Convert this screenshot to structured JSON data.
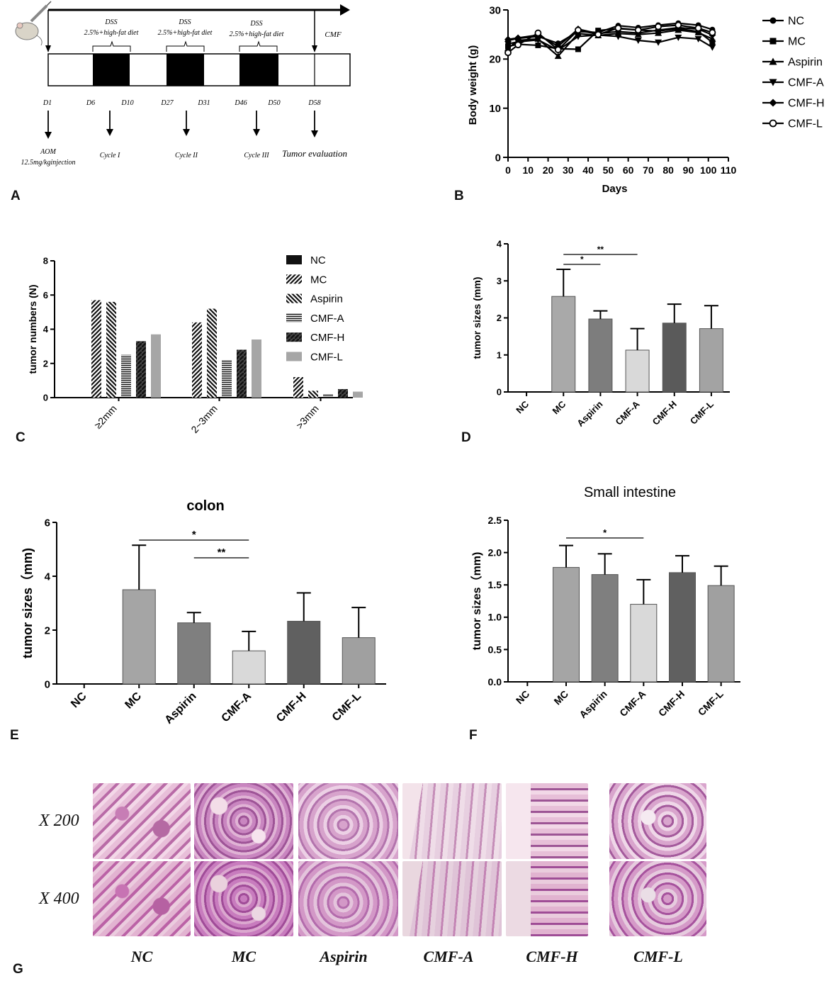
{
  "panel_labels": [
    "A",
    "B",
    "C",
    "D",
    "E",
    "F",
    "G"
  ],
  "timeline": {
    "arrow_end_label": "CMF",
    "phases": [
      {
        "title": "DSS",
        "subtitle": "2.5%+high-fat diet"
      },
      {
        "title": "DSS",
        "subtitle": "2.5%+high-fat diet"
      },
      {
        "title": "DSS",
        "subtitle": "2.5%+high-fat diet"
      }
    ],
    "days": [
      "D1",
      "D6",
      "D10",
      "D27",
      "D31",
      "D46",
      "D50",
      "D58"
    ],
    "events": [
      {
        "label": "AOM",
        "sub": "12.5mg/kginjection"
      },
      {
        "label": "Cycle I",
        "sub": ""
      },
      {
        "label": "Cycle II",
        "sub": ""
      },
      {
        "label": "Cycle III",
        "sub": ""
      },
      {
        "label": "Tumor evaluation",
        "sub": ""
      }
    ]
  },
  "chart_data": [
    {
      "id": "B",
      "type": "line",
      "title": "",
      "xlabel": "Days",
      "ylabel": "Body weight (g)",
      "xlim": [
        0,
        110
      ],
      "ylim": [
        0,
        30
      ],
      "xticks": [
        "0",
        "10",
        "20",
        "30",
        "40",
        "50",
        "60",
        "70",
        "80",
        "90",
        "100",
        "110"
      ],
      "yticks": [
        "0",
        "10",
        "20",
        "30"
      ],
      "legend_position": "right",
      "x": [
        0,
        5,
        15,
        25,
        35,
        45,
        55,
        65,
        75,
        85,
        95,
        102
      ],
      "series": [
        {
          "name": "NC",
          "marker": "circle",
          "values": [
            23.8,
            24.2,
            24.6,
            23.2,
            25.6,
            25.4,
            26.8,
            26.4,
            26.9,
            27.3,
            26.9,
            26.0
          ]
        },
        {
          "name": "MC",
          "marker": "square",
          "values": [
            22.6,
            23.0,
            22.8,
            22.1,
            22.0,
            25.8,
            26.2,
            25.9,
            25.7,
            26.2,
            25.6,
            23.4
          ]
        },
        {
          "name": "Aspirin",
          "marker": "triangle-up",
          "values": [
            22.2,
            23.8,
            24.1,
            20.6,
            25.2,
            24.8,
            25.2,
            25.0,
            25.3,
            25.9,
            25.4,
            24.1
          ]
        },
        {
          "name": "CMF-A",
          "marker": "triangle-down",
          "values": [
            23.1,
            23.5,
            23.9,
            21.8,
            24.6,
            24.9,
            24.6,
            23.8,
            23.4,
            24.4,
            24.1,
            22.4
          ]
        },
        {
          "name": "CMF-H",
          "marker": "diamond",
          "values": [
            24.0,
            24.3,
            24.9,
            22.6,
            26.1,
            25.2,
            25.6,
            25.3,
            25.9,
            26.4,
            26.1,
            24.9
          ]
        },
        {
          "name": "CMF-L",
          "marker": "circle-open",
          "values": [
            21.3,
            22.9,
            25.3,
            21.9,
            25.9,
            25.0,
            26.3,
            25.9,
            26.6,
            26.9,
            26.3,
            25.4
          ]
        }
      ]
    },
    {
      "id": "C",
      "type": "bar",
      "title": "",
      "xlabel": "",
      "ylabel": "tumor numbers (N)",
      "ylim": [
        0,
        8
      ],
      "yticks": [
        "0",
        "2",
        "4",
        "6",
        "8"
      ],
      "categories": [
        "≥2mm",
        "2~3mm",
        ">3mm"
      ],
      "legend_position": "right",
      "series": [
        {
          "name": "NC",
          "values": [
            0,
            0,
            0
          ],
          "color": "#111111",
          "pattern": "solid"
        },
        {
          "name": "MC",
          "values": [
            5.7,
            4.4,
            1.2
          ],
          "color": "#222222",
          "pattern": "diag-up"
        },
        {
          "name": "Aspirin",
          "values": [
            5.6,
            5.2,
            0.4
          ],
          "color": "#222222",
          "pattern": "diag-down"
        },
        {
          "name": "CMF-A",
          "values": [
            2.5,
            2.2,
            0.2
          ],
          "color": "#222222",
          "pattern": "horizontal"
        },
        {
          "name": "CMF-H",
          "values": [
            3.3,
            2.8,
            0.5
          ],
          "color": "#333333",
          "pattern": "dense-diag"
        },
        {
          "name": "CMF-L",
          "values": [
            3.7,
            3.4,
            0.35
          ],
          "color": "#a6a6a6",
          "pattern": "solid"
        }
      ]
    },
    {
      "id": "D",
      "type": "bar",
      "title": "",
      "xlabel": "",
      "ylabel": "tumor sizes (mm)",
      "ylim": [
        0,
        4
      ],
      "yticks": [
        "0",
        "1",
        "2",
        "3",
        "4"
      ],
      "categories": [
        "NC",
        "MC",
        "Aspirin",
        "CMF-A",
        "CMF-H",
        "CMF-L"
      ],
      "values": [
        0,
        2.58,
        1.97,
        1.13,
        1.86,
        1.71
      ],
      "errors": [
        0,
        0.73,
        0.22,
        0.58,
        0.51,
        0.62
      ],
      "colors": [
        "#888888",
        "#a9a9a9",
        "#7d7d7d",
        "#d9d9d9",
        "#5a5a5a",
        "#a3a3a3"
      ],
      "significance": [
        {
          "from": 1,
          "to": 2,
          "label": "*"
        },
        {
          "from": 1,
          "to": 3,
          "label": "**"
        }
      ]
    },
    {
      "id": "E",
      "type": "bar",
      "title": "colon",
      "xlabel": "",
      "ylabel": "tumor sizes（mm)",
      "ylim": [
        0,
        6
      ],
      "yticks": [
        "0",
        "2",
        "4",
        "6"
      ],
      "categories": [
        "NC",
        "MC",
        "Aspirin",
        "CMF-A",
        "CMF-H",
        "CMF-L"
      ],
      "values": [
        0,
        3.5,
        2.27,
        1.23,
        2.33,
        1.72
      ],
      "errors": [
        0,
        1.65,
        0.38,
        0.72,
        1.05,
        1.12
      ],
      "colors": [
        "#888888",
        "#a5a5a5",
        "#7f7f7f",
        "#d9d9d9",
        "#606060",
        "#a0a0a0"
      ],
      "significance": [
        {
          "from": 1,
          "to": 3,
          "label": "*"
        },
        {
          "from": 2,
          "to": 3,
          "label": "**"
        }
      ]
    },
    {
      "id": "F",
      "type": "bar",
      "title": "Small intestine",
      "xlabel": "",
      "ylabel": "tumor sizes（mm)",
      "ylim": [
        0,
        2.5
      ],
      "yticks": [
        "0.0",
        "0.5",
        "1.0",
        "1.5",
        "2.0",
        "2.5"
      ],
      "categories": [
        "NC",
        "MC",
        "Aspirin",
        "CMF-A",
        "CMF-H",
        "CMF-L"
      ],
      "values": [
        0,
        1.77,
        1.66,
        1.2,
        1.69,
        1.49
      ],
      "errors": [
        0,
        0.34,
        0.32,
        0.38,
        0.26,
        0.3
      ],
      "colors": [
        "#888888",
        "#a5a5a5",
        "#7f7f7f",
        "#d9d9d9",
        "#606060",
        "#a0a0a0"
      ],
      "significance": [
        {
          "from": 1,
          "to": 3,
          "label": "*"
        }
      ]
    }
  ],
  "histology": {
    "rows": [
      "X 200",
      "X 400"
    ],
    "columns": [
      "NC",
      "MC",
      "Aspirin",
      "CMF-A",
      "CMF-H",
      "CMF-L"
    ]
  }
}
